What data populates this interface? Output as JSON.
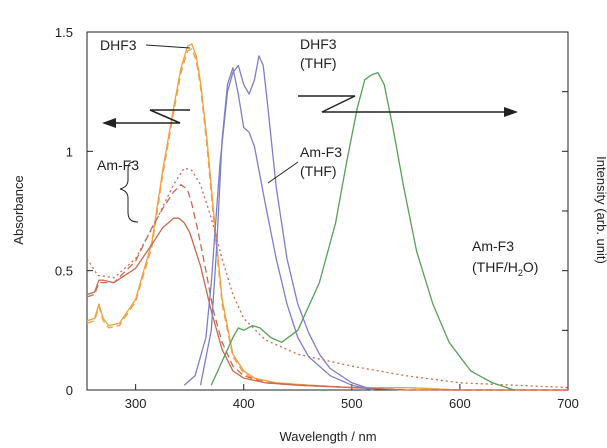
{
  "chart_data": {
    "type": "line",
    "xlabel": "Wavelength / nm",
    "ylabel": "Absorbance",
    "y2label": "Intensity (arb. unit)",
    "xlim": [
      255,
      700
    ],
    "ylim": [
      0,
      1.5
    ],
    "x_ticks": [
      300,
      400,
      500,
      600,
      700
    ],
    "x_tick_labels": [
      "300",
      "400",
      "500",
      "600",
      "700"
    ],
    "y_ticks": [
      0,
      0.5,
      1,
      1.5
    ],
    "y_tick_labels": [
      "0",
      "0.5",
      "1",
      "1.5"
    ],
    "grid": false,
    "legend": "none",
    "colors": {
      "dhf3_abs": "#f0a040",
      "amf3_abs": "#c86a50",
      "blue": "#7f7fc8",
      "green": "#58a058",
      "axis": "#222222"
    },
    "annotations": {
      "dhf3_label": "DHF3",
      "dhf3_thf_line1": "DHF3",
      "dhf3_thf_line2": "(THF)",
      "amf3_label": "Am-F3",
      "amf3_thf_line1": "Am-F3",
      "amf3_thf_line2": "(THF)",
      "amf3_mix_line1": "Am-F3",
      "amf3_mix_line2_pre": "(THF/H",
      "amf3_mix_line2_sub": "2",
      "amf3_mix_line2_post": "O)"
    },
    "series": [
      {
        "key": "dhf3_abs_a",
        "color": "#f0a040",
        "dash": "solid",
        "x": [
          255,
          262,
          266,
          270,
          275,
          285,
          300,
          315,
          325,
          335,
          342,
          348,
          352,
          356,
          360,
          366,
          372,
          380,
          390,
          400,
          410,
          430,
          460,
          500,
          550,
          600,
          700
        ],
        "y": [
          0.29,
          0.3,
          0.36,
          0.3,
          0.27,
          0.28,
          0.38,
          0.62,
          0.92,
          1.18,
          1.35,
          1.44,
          1.45,
          1.4,
          1.29,
          1.05,
          0.75,
          0.38,
          0.15,
          0.08,
          0.05,
          0.03,
          0.02,
          0.01,
          0.01,
          0.0,
          0.0
        ]
      },
      {
        "key": "dhf3_abs_b",
        "color": "#f0a040",
        "dash": "dash",
        "x": [
          255,
          262,
          266,
          270,
          275,
          285,
          300,
          315,
          325,
          335,
          342,
          348,
          352,
          356,
          360,
          366,
          372,
          380,
          390,
          400,
          410,
          430,
          460,
          500,
          550,
          600,
          700
        ],
        "y": [
          0.28,
          0.29,
          0.35,
          0.29,
          0.26,
          0.27,
          0.37,
          0.6,
          0.9,
          1.16,
          1.33,
          1.42,
          1.43,
          1.38,
          1.27,
          1.02,
          0.72,
          0.36,
          0.14,
          0.07,
          0.045,
          0.03,
          0.02,
          0.01,
          0.01,
          0.0,
          0.0
        ]
      },
      {
        "key": "amf3_abs_a",
        "color": "#c86a50",
        "dash": "solid",
        "x": [
          255,
          262,
          266,
          270,
          280,
          300,
          315,
          325,
          335,
          340,
          345,
          350,
          360,
          370,
          380,
          390,
          400,
          420,
          450,
          500,
          550,
          600,
          700
        ],
        "y": [
          0.4,
          0.41,
          0.46,
          0.46,
          0.45,
          0.51,
          0.61,
          0.68,
          0.72,
          0.72,
          0.7,
          0.66,
          0.52,
          0.33,
          0.17,
          0.08,
          0.05,
          0.03,
          0.02,
          0.01,
          0.0,
          0.0,
          0.0
        ]
      },
      {
        "key": "amf3_abs_b",
        "color": "#c86a50",
        "dash": "dash",
        "x": [
          255,
          262,
          266,
          270,
          280,
          300,
          315,
          325,
          335,
          342,
          348,
          352,
          358,
          365,
          372,
          380,
          390,
          400,
          420,
          450,
          500,
          550,
          700
        ],
        "y": [
          0.39,
          0.4,
          0.45,
          0.45,
          0.45,
          0.54,
          0.68,
          0.76,
          0.83,
          0.86,
          0.84,
          0.78,
          0.66,
          0.5,
          0.33,
          0.2,
          0.1,
          0.06,
          0.03,
          0.02,
          0.01,
          0.0,
          0.0
        ]
      },
      {
        "key": "amf3_abs_c",
        "color": "#c86a50",
        "dash": "dot",
        "x": [
          255,
          265,
          280,
          300,
          320,
          335,
          345,
          352,
          360,
          370,
          380,
          390,
          400,
          420,
          450,
          480,
          500,
          550,
          600,
          650,
          700
        ],
        "y": [
          0.55,
          0.48,
          0.47,
          0.55,
          0.72,
          0.86,
          0.93,
          0.92,
          0.86,
          0.72,
          0.55,
          0.4,
          0.3,
          0.21,
          0.15,
          0.12,
          0.1,
          0.06,
          0.03,
          0.02,
          0.01
        ]
      },
      {
        "key": "dhf3_thf_em_a",
        "color": "#7f7fc8",
        "dash": "solid",
        "x": [
          360,
          370,
          375,
          380,
          385,
          390,
          395,
          400,
          405,
          410,
          415,
          420,
          430,
          440,
          450,
          460,
          480,
          500,
          520
        ],
        "y": [
          0.02,
          0.25,
          0.6,
          1.05,
          1.28,
          1.35,
          1.24,
          1.1,
          1.08,
          1.02,
          0.9,
          0.78,
          0.55,
          0.36,
          0.22,
          0.14,
          0.06,
          0.02,
          0.0
        ]
      },
      {
        "key": "dhf3_thf_em_b",
        "color": "#7f7fc8",
        "dash": "solid",
        "x": [
          345,
          355,
          365,
          370,
          378,
          385,
          390,
          395,
          400,
          405,
          410,
          414,
          418,
          422,
          430,
          440,
          450,
          460,
          470,
          480,
          500,
          520
        ],
        "y": [
          0.02,
          0.06,
          0.22,
          0.45,
          0.95,
          1.25,
          1.33,
          1.36,
          1.28,
          1.24,
          1.3,
          1.4,
          1.36,
          1.2,
          0.85,
          0.55,
          0.36,
          0.24,
          0.15,
          0.09,
          0.03,
          0.0
        ]
      },
      {
        "key": "amf3_mix_em",
        "color": "#58a058",
        "dash": "solid",
        "x": [
          370,
          380,
          390,
          395,
          400,
          408,
          415,
          425,
          435,
          450,
          470,
          485,
          495,
          505,
          512,
          518,
          524,
          530,
          538,
          548,
          560,
          575,
          590,
          610,
          630,
          650
        ],
        "y": [
          0.02,
          0.12,
          0.22,
          0.26,
          0.25,
          0.27,
          0.26,
          0.22,
          0.2,
          0.25,
          0.45,
          0.7,
          0.95,
          1.18,
          1.3,
          1.32,
          1.33,
          1.28,
          1.1,
          0.85,
          0.58,
          0.36,
          0.2,
          0.08,
          0.03,
          0.0
        ]
      }
    ]
  }
}
